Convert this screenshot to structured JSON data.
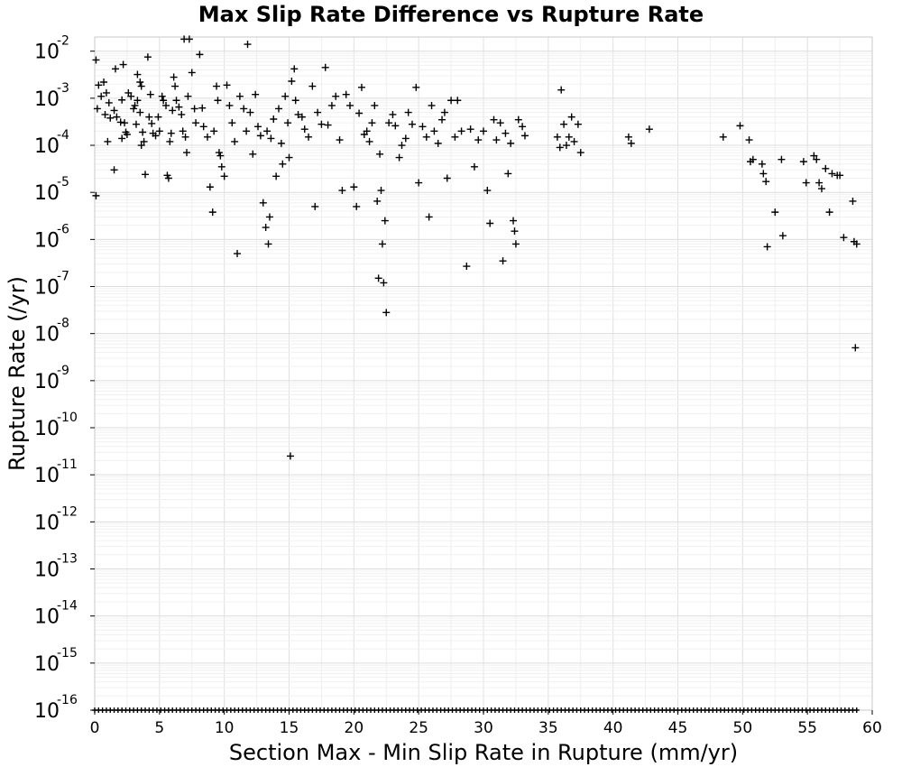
{
  "chart_data": {
    "type": "scatter",
    "title": "Max Slip Rate Difference vs Rupture Rate",
    "xlabel": "Section Max - Min Slip Rate in Rupture (mm/yr)",
    "ylabel": "Rupture Rate (/yr)",
    "xlim": [
      0,
      60
    ],
    "ylim": [
      1e-16,
      0.02
    ],
    "y_scale": "log",
    "grid": true,
    "marker": "plus",
    "x_ticks": [
      "0",
      "5",
      "10",
      "15",
      "20",
      "25",
      "30",
      "35",
      "40",
      "45",
      "50",
      "55",
      "60"
    ],
    "y_ticks": [
      {
        "base": "10",
        "exp": "-16"
      },
      {
        "base": "10",
        "exp": "-15"
      },
      {
        "base": "10",
        "exp": "-14"
      },
      {
        "base": "10",
        "exp": "-13"
      },
      {
        "base": "10",
        "exp": "-12"
      },
      {
        "base": "10",
        "exp": "-11"
      },
      {
        "base": "10",
        "exp": "-10"
      },
      {
        "base": "10",
        "exp": "-9"
      },
      {
        "base": "10",
        "exp": "-8"
      },
      {
        "base": "10",
        "exp": "-7"
      },
      {
        "base": "10",
        "exp": "-6"
      },
      {
        "base": "10",
        "exp": "-5"
      },
      {
        "base": "10",
        "exp": "-4"
      },
      {
        "base": "10",
        "exp": "-3"
      },
      {
        "base": "10",
        "exp": "-2"
      }
    ],
    "points": [
      [
        0.1,
        0.0065
      ],
      [
        0.3,
        0.0019
      ],
      [
        0.5,
        0.0011
      ],
      [
        0.7,
        0.0022
      ],
      [
        0.9,
        0.0013
      ],
      [
        1.1,
        0.0008
      ],
      [
        0.8,
        0.00045
      ],
      [
        1.2,
        0.00038
      ],
      [
        1.5,
        0.00055
      ],
      [
        1.7,
        0.0004
      ],
      [
        0.2,
        0.0006
      ],
      [
        0.1,
        8.5e-06
      ],
      [
        1.0,
        0.00012
      ],
      [
        1.5,
        3e-05
      ],
      [
        1.6,
        0.0042
      ],
      [
        2.1,
        0.00092
      ],
      [
        2.2,
        0.0052
      ],
      [
        2.0,
        0.00031
      ],
      [
        2.3,
        0.0003
      ],
      [
        2.5,
        0.00017
      ],
      [
        2.1,
        0.00014
      ],
      [
        2.4,
        0.00019
      ],
      [
        2.6,
        0.0013
      ],
      [
        2.8,
        0.0011
      ],
      [
        3.0,
        0.0006
      ],
      [
        3.1,
        0.0007
      ],
      [
        3.3,
        0.0032
      ],
      [
        3.5,
        0.0022
      ],
      [
        3.6,
        0.0018
      ],
      [
        3.3,
        0.0009
      ],
      [
        3.2,
        0.00028
      ],
      [
        3.5,
        0.0005
      ],
      [
        3.7,
        0.00019
      ],
      [
        3.8,
        0.00012
      ],
      [
        3.6,
        0.0001
      ],
      [
        3.9,
        2.4e-05
      ],
      [
        4.1,
        0.0075
      ],
      [
        4.3,
        0.0012
      ],
      [
        4.2,
        0.0004
      ],
      [
        4.4,
        0.00029
      ],
      [
        4.5,
        0.00018
      ],
      [
        4.7,
        0.00016
      ],
      [
        4.9,
        0.0004
      ],
      [
        5.0,
        0.0002
      ],
      [
        5.2,
        0.0011
      ],
      [
        5.3,
        0.0009
      ],
      [
        5.5,
        0.0007
      ],
      [
        5.6,
        2.3e-05
      ],
      [
        5.7,
        2e-05
      ],
      [
        5.8,
        0.00012
      ],
      [
        6.0,
        0.00055
      ],
      [
        5.9,
        0.00018
      ],
      [
        6.1,
        0.0028
      ],
      [
        6.2,
        0.0018
      ],
      [
        6.3,
        0.0009
      ],
      [
        6.5,
        0.00065
      ],
      [
        6.7,
        0.00045
      ],
      [
        6.8,
        0.0002
      ],
      [
        7.0,
        0.00015
      ],
      [
        7.1,
        7e-05
      ],
      [
        6.9,
        0.018
      ],
      [
        7.3,
        0.018
      ],
      [
        7.2,
        0.0011
      ],
      [
        7.5,
        0.0035
      ],
      [
        7.7,
        0.0006
      ],
      [
        7.8,
        0.0003
      ],
      [
        8.1,
        0.0085
      ],
      [
        8.3,
        0.00062
      ],
      [
        8.4,
        0.00025
      ],
      [
        8.7,
        0.00015
      ],
      [
        8.9,
        1.3e-05
      ],
      [
        9.1,
        3.8e-06
      ],
      [
        9.2,
        0.0002
      ],
      [
        9.4,
        0.0018
      ],
      [
        9.5,
        0.0009
      ],
      [
        9.6,
        7e-05
      ],
      [
        9.7,
        6e-05
      ],
      [
        9.8,
        3.5e-05
      ],
      [
        10.0,
        2.2e-05
      ],
      [
        10.2,
        0.0019
      ],
      [
        10.4,
        0.0007
      ],
      [
        10.6,
        0.0003
      ],
      [
        10.8,
        0.00012
      ],
      [
        11.0,
        5e-07
      ],
      [
        11.2,
        0.0011
      ],
      [
        11.5,
        0.0006
      ],
      [
        11.7,
        0.0002
      ],
      [
        11.8,
        0.014
      ],
      [
        12.0,
        0.0005
      ],
      [
        12.2,
        6.5e-05
      ],
      [
        12.4,
        0.0012
      ],
      [
        12.6,
        0.00025
      ],
      [
        12.8,
        0.00016
      ],
      [
        13.0,
        6e-06
      ],
      [
        13.2,
        1.8e-06
      ],
      [
        13.3,
        0.0002
      ],
      [
        13.4,
        8e-07
      ],
      [
        13.5,
        3e-06
      ],
      [
        13.6,
        0.00014
      ],
      [
        13.8,
        0.00036
      ],
      [
        14.0,
        2.2e-05
      ],
      [
        14.2,
        0.0006
      ],
      [
        14.4,
        0.00011
      ],
      [
        14.5,
        4e-05
      ],
      [
        14.7,
        0.0011
      ],
      [
        14.9,
        0.0003
      ],
      [
        15.0,
        5.5e-05
      ],
      [
        15.1,
        2.5e-11
      ],
      [
        15.2,
        0.0023
      ],
      [
        15.4,
        0.0042
      ],
      [
        15.5,
        0.0009
      ],
      [
        15.7,
        0.00045
      ],
      [
        16.0,
        0.0004
      ],
      [
        16.2,
        0.00022
      ],
      [
        16.5,
        0.00015
      ],
      [
        16.8,
        0.0018
      ],
      [
        17.0,
        5e-06
      ],
      [
        17.2,
        0.0005
      ],
      [
        17.5,
        0.00028
      ],
      [
        17.8,
        0.0045
      ],
      [
        18.0,
        0.00027
      ],
      [
        18.3,
        0.0007
      ],
      [
        18.6,
        0.0011
      ],
      [
        18.9,
        0.00013
      ],
      [
        19.1,
        1.1e-05
      ],
      [
        19.4,
        0.0012
      ],
      [
        19.7,
        0.0007
      ],
      [
        20.0,
        1.3e-05
      ],
      [
        20.2,
        5e-06
      ],
      [
        20.4,
        0.00048
      ],
      [
        20.6,
        0.0017
      ],
      [
        20.8,
        0.00017
      ],
      [
        21.0,
        0.0002
      ],
      [
        21.2,
        0.00012
      ],
      [
        21.4,
        0.0003
      ],
      [
        21.6,
        0.0007
      ],
      [
        21.8,
        6.5e-06
      ],
      [
        21.9,
        1.5e-07
      ],
      [
        22.0,
        6.5e-05
      ],
      [
        22.1,
        1.1e-05
      ],
      [
        22.2,
        8e-07
      ],
      [
        22.3,
        1.2e-07
      ],
      [
        22.4,
        2.5e-06
      ],
      [
        22.5,
        2.8e-08
      ],
      [
        22.7,
        0.0003
      ],
      [
        23.0,
        0.00045
      ],
      [
        23.2,
        0.00026
      ],
      [
        23.5,
        5.5e-05
      ],
      [
        23.7,
        0.0001
      ],
      [
        24.0,
        0.00014
      ],
      [
        24.2,
        0.0005
      ],
      [
        24.5,
        0.00028
      ],
      [
        24.8,
        0.0017
      ],
      [
        25.0,
        1.6e-05
      ],
      [
        25.3,
        0.00025
      ],
      [
        25.6,
        0.00015
      ],
      [
        25.8,
        3e-06
      ],
      [
        26.0,
        0.0007
      ],
      [
        26.2,
        0.0002
      ],
      [
        26.5,
        0.00011
      ],
      [
        26.8,
        0.00035
      ],
      [
        27.0,
        0.0005
      ],
      [
        27.2,
        2e-05
      ],
      [
        27.5,
        0.0009
      ],
      [
        27.8,
        0.00015
      ],
      [
        28.0,
        0.0009
      ],
      [
        28.3,
        0.0002
      ],
      [
        28.7,
        2.7e-07
      ],
      [
        29.0,
        0.00022
      ],
      [
        29.3,
        3.5e-05
      ],
      [
        29.6,
        0.00013
      ],
      [
        30.0,
        0.0002
      ],
      [
        30.3,
        1.1e-05
      ],
      [
        30.5,
        2.2e-06
      ],
      [
        30.8,
        0.00035
      ],
      [
        31.0,
        0.00013
      ],
      [
        31.3,
        0.0003
      ],
      [
        31.5,
        3.5e-07
      ],
      [
        31.7,
        0.00018
      ],
      [
        31.9,
        2.5e-05
      ],
      [
        32.1,
        0.00011
      ],
      [
        32.3,
        2.5e-06
      ],
      [
        32.4,
        1.5e-06
      ],
      [
        32.5,
        8e-07
      ],
      [
        32.7,
        0.00035
      ],
      [
        33.0,
        0.00025
      ],
      [
        33.2,
        0.00016
      ],
      [
        35.7,
        0.00015
      ],
      [
        35.9,
        9e-05
      ],
      [
        36.0,
        0.0015
      ],
      [
        36.2,
        0.00028
      ],
      [
        36.4,
        0.0001
      ],
      [
        36.6,
        0.00015
      ],
      [
        36.8,
        0.0004
      ],
      [
        37.0,
        0.00012
      ],
      [
        37.3,
        0.00028
      ],
      [
        37.5,
        7e-05
      ],
      [
        41.2,
        0.00015
      ],
      [
        41.4,
        0.00011
      ],
      [
        42.8,
        0.00022
      ],
      [
        48.5,
        0.00015
      ],
      [
        49.8,
        0.00026
      ],
      [
        50.5,
        0.00013
      ],
      [
        50.6,
        4.5e-05
      ],
      [
        50.8,
        5e-05
      ],
      [
        51.5,
        4e-05
      ],
      [
        51.6,
        2.5e-05
      ],
      [
        51.8,
        1.7e-05
      ],
      [
        51.9,
        7e-07
      ],
      [
        52.5,
        3.8e-06
      ],
      [
        53.0,
        5e-05
      ],
      [
        53.1,
        1.2e-06
      ],
      [
        54.7,
        4.5e-05
      ],
      [
        54.9,
        1.6e-05
      ],
      [
        55.5,
        6e-05
      ],
      [
        55.7,
        5e-05
      ],
      [
        55.9,
        1.6e-05
      ],
      [
        56.1,
        1.2e-05
      ],
      [
        56.4,
        3.2e-05
      ],
      [
        56.7,
        3.8e-06
      ],
      [
        56.9,
        2.5e-05
      ],
      [
        57.3,
        2.3e-05
      ],
      [
        57.5,
        2.3e-05
      ],
      [
        57.8,
        1.1e-06
      ],
      [
        58.5,
        6.5e-06
      ],
      [
        58.6,
        9e-07
      ],
      [
        58.7,
        5e-09
      ],
      [
        58.8,
        8e-07
      ]
    ],
    "floor_value": 1e-16,
    "floor_x": [
      0.0,
      0.3,
      0.6,
      0.9,
      1.2,
      1.5,
      1.8,
      2.1,
      2.4,
      2.7,
      3.0,
      3.3,
      3.6,
      3.9,
      4.2,
      4.5,
      4.8,
      5.1,
      5.4,
      5.7,
      6.0,
      6.3,
      6.6,
      6.9,
      7.2,
      7.5,
      7.8,
      8.1,
      8.4,
      8.7,
      9.0,
      9.3,
      9.6,
      9.9,
      10.2,
      10.5,
      10.8,
      11.1,
      11.4,
      11.7,
      12.0,
      12.3,
      12.6,
      12.9,
      13.2,
      13.5,
      13.8,
      14.1,
      14.4,
      14.7,
      15.0,
      15.3,
      15.6,
      15.9,
      16.2,
      16.5,
      16.8,
      17.1,
      17.4,
      17.7,
      18.0,
      18.3,
      18.6,
      18.9,
      19.2,
      19.5,
      19.8,
      20.1,
      20.4,
      20.7,
      21.0,
      21.3,
      21.6,
      21.9,
      22.2,
      22.5,
      22.8,
      23.1,
      23.4,
      23.7,
      24.0,
      24.3,
      24.6,
      24.9,
      25.2,
      25.5,
      25.8,
      26.1,
      26.4,
      26.7,
      27.0,
      27.3,
      27.6,
      27.9,
      28.2,
      28.5,
      28.8,
      29.1,
      29.4,
      29.7,
      30.0,
      30.3,
      30.6,
      30.9,
      31.2,
      31.5,
      31.8,
      32.1,
      32.4,
      32.7,
      33.0,
      33.3,
      33.6,
      33.9,
      34.2,
      34.5,
      34.8,
      35.1,
      35.4,
      35.7,
      36.0,
      36.3,
      36.6,
      36.9,
      37.2,
      37.5,
      37.8,
      38.1,
      38.4,
      38.7,
      39.0,
      39.3,
      39.6,
      39.9,
      40.2,
      40.5,
      40.8,
      41.1,
      41.4,
      41.7,
      42.0,
      42.3,
      42.6,
      42.9,
      43.2,
      43.5,
      43.8,
      44.1,
      44.4,
      44.7,
      45.0,
      45.3,
      45.6,
      45.9,
      46.2,
      46.5,
      46.8,
      47.1,
      47.4,
      47.7,
      48.0,
      48.3,
      48.6,
      48.9,
      49.2,
      49.5,
      49.8,
      50.1,
      50.4,
      50.7,
      51.0,
      51.3,
      51.6,
      51.9,
      52.2,
      52.5,
      52.8,
      53.1,
      53.4,
      53.7,
      54.0,
      54.3,
      54.6,
      54.9,
      55.2,
      55.5,
      55.8,
      56.1,
      56.4,
      56.7,
      57.0,
      57.3,
      57.6,
      57.9,
      58.2,
      58.5,
      58.8
    ]
  }
}
